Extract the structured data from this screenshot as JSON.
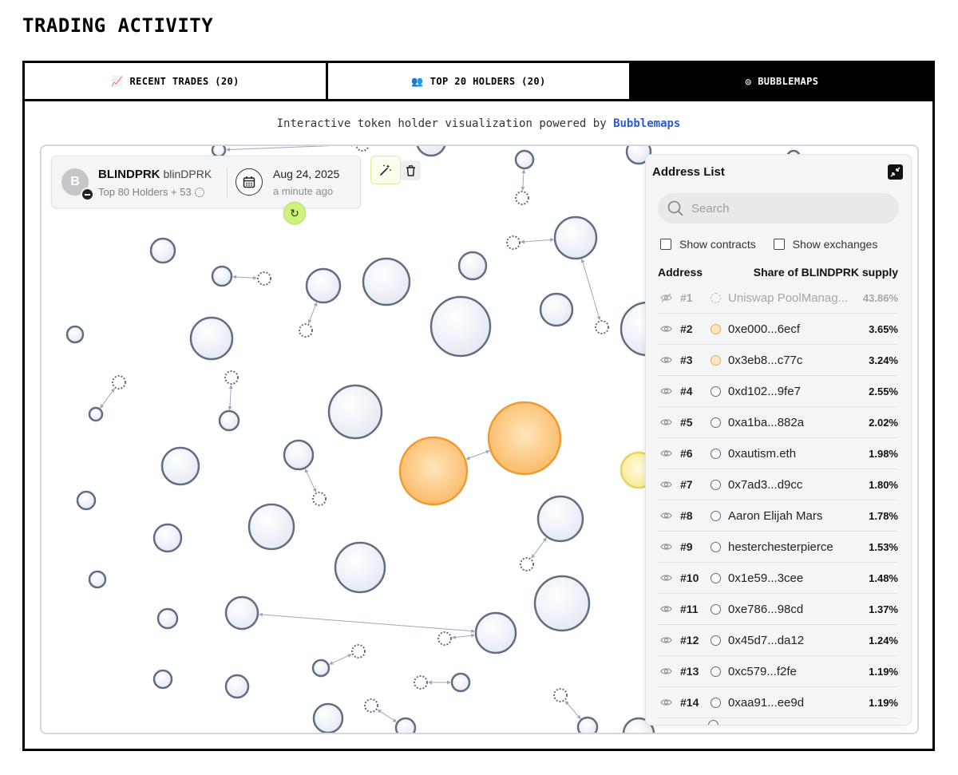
{
  "page_title": "TRADING ACTIVITY",
  "tabs": [
    {
      "icon": "chart-increasing-icon",
      "glyph": "📈",
      "label": "RECENT TRADES (20)",
      "active": false
    },
    {
      "icon": "people-icon",
      "glyph": "👥",
      "label": "TOP 20 HOLDERS (20)",
      "active": false
    },
    {
      "icon": "bubbles-icon",
      "glyph": "◎",
      "label": "BUBBLEMAPS",
      "active": true
    }
  ],
  "subtitle": {
    "text": "Interactive token holder visualization powered by",
    "brand": "Bubblemaps"
  },
  "token": {
    "avatar_letter": "B",
    "name": "BLINDPRK",
    "ticker": "blinDPRK",
    "holders": "Top 80 Holders + 53",
    "date": "Aug 24, 2025",
    "relative": "a minute ago"
  },
  "address_list": {
    "title": "Address List",
    "search_placeholder": "Search",
    "show_contracts": "Show contracts",
    "show_exchanges": "Show exchanges",
    "col_address": "Address",
    "col_share": "Share of BLINDPRK supply",
    "rows": [
      {
        "rank": "#1",
        "name": "Uniswap PoolManag...",
        "pct": "43.86%",
        "muted": true
      },
      {
        "rank": "#2",
        "name": "0xe000...6ecf",
        "pct": "3.65%",
        "color": "#f0a948"
      },
      {
        "rank": "#3",
        "name": "0x3eb8...c77c",
        "pct": "3.24%",
        "color": "#f0a948"
      },
      {
        "rank": "#4",
        "name": "0xd102...9fe7",
        "pct": "2.55%"
      },
      {
        "rank": "#5",
        "name": "0xa1ba...882a",
        "pct": "2.02%"
      },
      {
        "rank": "#6",
        "name": "0xautism.eth",
        "pct": "1.98%"
      },
      {
        "rank": "#7",
        "name": "0x7ad3...d9cc",
        "pct": "1.80%"
      },
      {
        "rank": "#8",
        "name": "Aaron Elijah Mars",
        "pct": "1.78%"
      },
      {
        "rank": "#9",
        "name": "hesterchesterpierce",
        "pct": "1.53%"
      },
      {
        "rank": "#10",
        "name": "0x1e59...3cee",
        "pct": "1.48%"
      },
      {
        "rank": "#11",
        "name": "0xe786...98cd",
        "pct": "1.37%"
      },
      {
        "rank": "#12",
        "name": "0x45d7...da12",
        "pct": "1.24%"
      },
      {
        "rank": "#13",
        "name": "0xc579...f2fe",
        "pct": "1.19%"
      },
      {
        "rank": "#14",
        "name": "0xaa91...ee9d",
        "pct": "1.19%"
      }
    ]
  },
  "colors": {
    "bubble_fill": "#eef1f7",
    "bubble_stroke": "#616d82",
    "orange_fill": "#fbc878",
    "orange_stroke": "#ee9b33",
    "yellow_stroke": "#e7d45a",
    "link": "#9aa7bb",
    "brand_link": "#2a5bd7"
  }
}
